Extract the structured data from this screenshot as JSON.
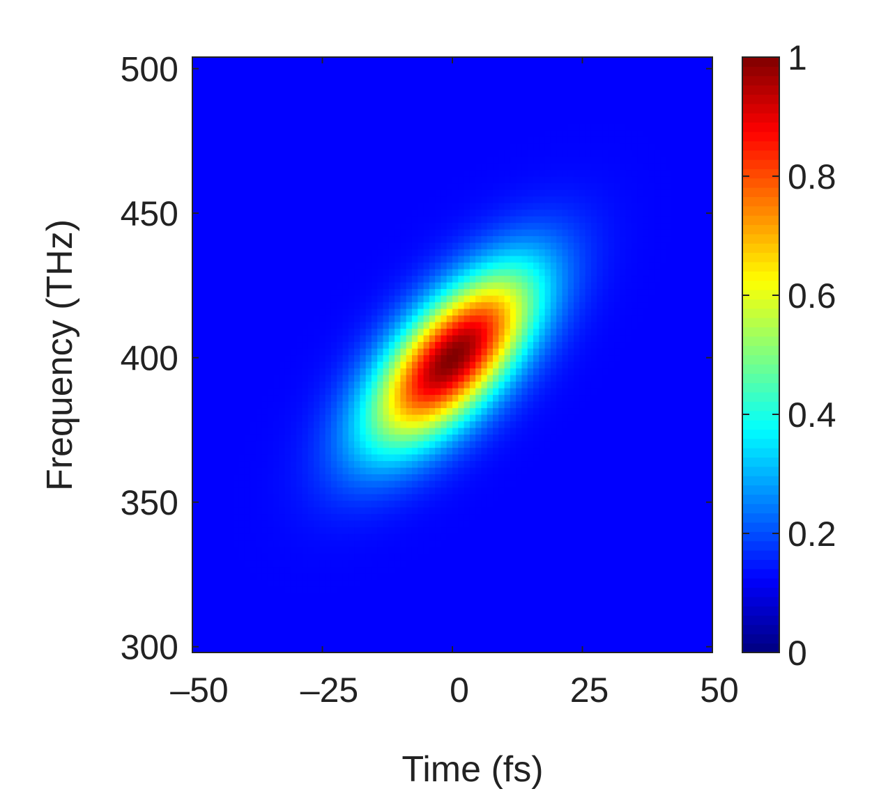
{
  "chart_data": {
    "type": "heatmap",
    "title": "",
    "xlabel": "Time (fs)",
    "ylabel": "Frequency (THz)",
    "xlim": [
      -50,
      50
    ],
    "ylim": [
      298,
      504
    ],
    "xticks": [
      -50,
      -25,
      0,
      25,
      50
    ],
    "xtick_labels": [
      "–50",
      "–25",
      "0",
      "25",
      "50"
    ],
    "yticks": [
      300,
      350,
      400,
      450,
      500
    ],
    "ytick_labels": [
      "300",
      "350",
      "400",
      "450",
      "500"
    ],
    "colormap": "jet",
    "colorbar": {
      "range": [
        0,
        1
      ],
      "ticks": [
        0,
        0.2,
        0.4,
        0.6,
        0.8,
        1
      ],
      "tick_labels": [
        "0",
        "0.2",
        "0.4",
        "0.6",
        "0.8",
        "1"
      ],
      "placement": "right"
    },
    "model": {
      "description": "normalized intensity, tilted 2D Gaussian",
      "center_time_fs": 0,
      "center_frequency_thz": 400,
      "sigma_time_fs": 11,
      "sigma_frequency_thz": 21,
      "correlation": 0.66,
      "peak": 1
    },
    "grid": {
      "nx": 90,
      "ny": 90
    },
    "grid_on": false
  }
}
